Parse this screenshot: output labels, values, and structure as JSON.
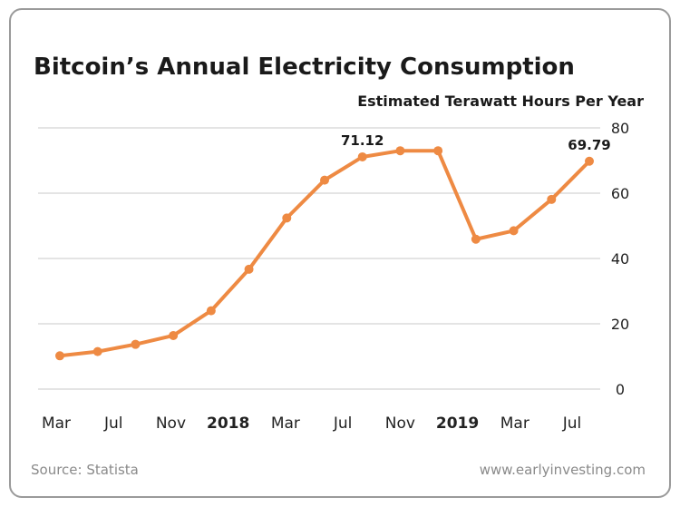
{
  "chart_data": {
    "type": "line",
    "title": "Bitcoin’s Annual Electricity Consumption",
    "subtitle": "Estimated Terawatt Hours Per Year",
    "x_tick_labels": [
      "Mar",
      "Jul",
      "Nov",
      "2018",
      "Mar",
      "Jul",
      "Nov",
      "2019",
      "Mar",
      "Jul"
    ],
    "x_tick_bold": [
      false,
      false,
      false,
      true,
      false,
      false,
      false,
      true,
      false,
      false
    ],
    "y_ticks": [
      0,
      20,
      40,
      60,
      80
    ],
    "ylim": [
      0,
      80
    ],
    "grid": true,
    "series": [
      {
        "values": [
          10.2,
          11.5,
          13.7,
          16.4,
          24.0,
          36.7,
          52.4,
          64.0,
          71.12,
          73.0,
          73.0,
          45.9,
          48.5,
          58.1,
          69.79
        ]
      }
    ],
    "annotations": [
      {
        "point_index": 8,
        "text": "71.12"
      },
      {
        "point_index": 14,
        "text": "69.79"
      }
    ],
    "line_color": "#ee8a43"
  },
  "footer": {
    "source": "Source: Statista",
    "website": "www.earlyinvesting.com"
  }
}
